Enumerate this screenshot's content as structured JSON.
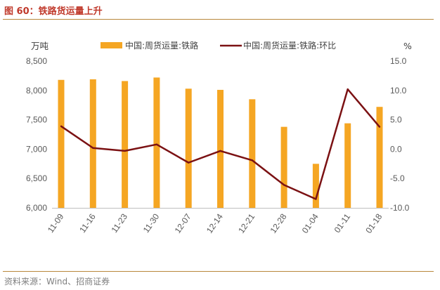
{
  "figure": {
    "title": "图 60：铁路货运量上升",
    "source": "资料来源：Wind、招商证券"
  },
  "colors": {
    "title": "#c0392b",
    "bar": "#f5a623",
    "line": "#7b1113",
    "rule": "#b8863b",
    "axis_text": "#595959"
  },
  "chart_data": {
    "type": "bar",
    "categories": [
      "11-09",
      "11-16",
      "11-23",
      "11-30",
      "12-07",
      "12-14",
      "12-21",
      "12-28",
      "01-04",
      "01-11",
      "01-18"
    ],
    "series": [
      {
        "name": "中国:周货运量:铁路",
        "type": "bar",
        "axis": "left",
        "values": [
          8180,
          8190,
          8160,
          8220,
          8030,
          8010,
          7850,
          7380,
          6750,
          7440,
          7720
        ]
      },
      {
        "name": "中国:周货运量:铁路:环比",
        "type": "line",
        "axis": "right",
        "values": [
          3.9,
          0.2,
          -0.3,
          0.8,
          -2.3,
          -0.3,
          -1.9,
          -6.1,
          -8.5,
          10.2,
          3.8
        ]
      }
    ],
    "left_axis": {
      "unit": "万吨",
      "ylim": [
        6000,
        8500
      ],
      "ticks": [
        "8,500",
        "8,000",
        "7,500",
        "7,000",
        "6,500",
        "6,000"
      ]
    },
    "right_axis": {
      "unit": "%",
      "ylim": [
        -10,
        15
      ],
      "ticks": [
        "15.0",
        "10.0",
        "5.0",
        "0.0",
        "-5.0",
        "-10.0"
      ]
    },
    "grid": false,
    "legend_position": "top"
  }
}
